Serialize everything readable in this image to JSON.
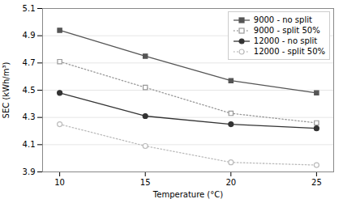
{
  "chart_data": {
    "type": "line",
    "xlabel": "Temperature (°C)",
    "ylabel": "SEC (kWh/m³)",
    "x": [
      10,
      15,
      20,
      25
    ],
    "series": [
      {
        "name": "9000 - no split",
        "color": "#555555",
        "values": [
          4.94,
          4.75,
          4.57,
          4.48
        ],
        "marker": "square",
        "line_style": "solid"
      },
      {
        "name": "9000 - split 50%",
        "color": "#999999",
        "values": [
          4.71,
          4.52,
          4.33,
          4.26
        ],
        "marker": "square-open",
        "line_style": "dotted"
      },
      {
        "name": "12000 - no split",
        "color": "#333333",
        "values": [
          4.48,
          4.31,
          4.25,
          4.22
        ],
        "marker": "circle",
        "line_style": "solid"
      },
      {
        "name": "12000 - split 50%",
        "color": "#bbbbbb",
        "values": [
          4.25,
          4.09,
          3.97,
          3.95
        ],
        "marker": "circle-open",
        "line_style": "dotted"
      }
    ],
    "xlim": [
      9,
      26
    ],
    "ylim": [
      3.9,
      5.1
    ],
    "xticks": [
      10,
      15,
      20,
      25
    ],
    "yticks": [
      3.9,
      4.1,
      4.3,
      4.5,
      4.7,
      4.9,
      5.1
    ],
    "grid": "y",
    "legend": "upper right"
  }
}
